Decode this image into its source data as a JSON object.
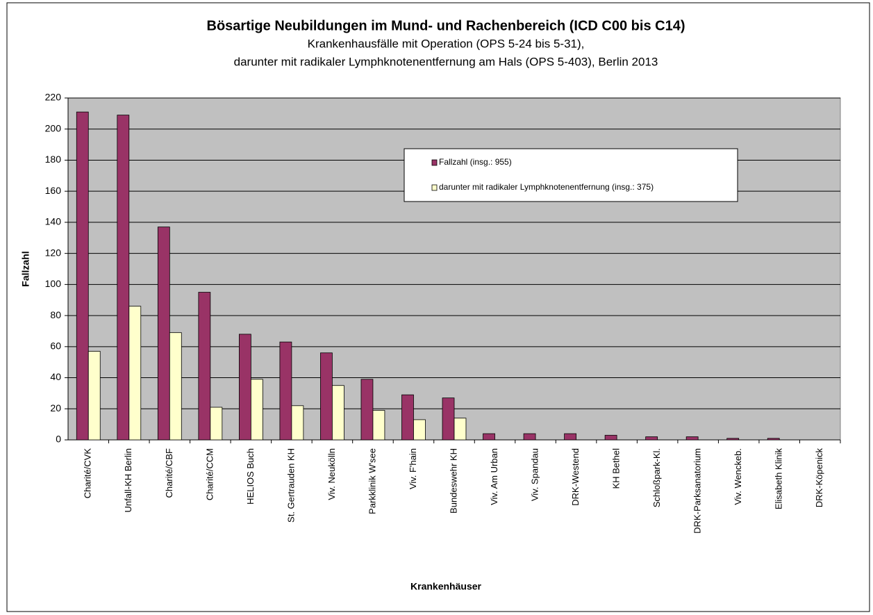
{
  "chart_data": {
    "type": "bar",
    "title": "Bösartige Neubildungen im Mund- und Rachenbereich (ICD C00 bis C14)",
    "subtitle": [
      "Krankenhausfälle mit Operation (OPS 5-24 bis 5-31),",
      "darunter mit radikaler Lymphknotenentfernung am Hals (OPS 5-403), Berlin 2013"
    ],
    "x_label": "Krankenhäuser",
    "y_label": "Fallzahl",
    "categories": [
      "Charité/CVK",
      "Unfall-KH Berlin",
      "Charité/CBF",
      "Charité/CCM",
      "HELIOS Buch",
      "St. Gertrauden KH",
      "Viv. Neukölln",
      "Parkklinik W'see",
      "Viv. F'hain",
      "Bundeswehr KH",
      "Viv. Am Urban",
      "Viv. Spandau",
      "DRK-Westend",
      "KH Bethel",
      "Schloßpark-Kl.",
      "DRK-Parksanatorium",
      "Viv. Wenckeb.",
      "Elisabeth Klinik",
      "DRK-Köpenick"
    ],
    "series": [
      {
        "name": "Fallzahl (insg.: 955)",
        "color": "#993366",
        "values": [
          211,
          209,
          137,
          95,
          68,
          63,
          56,
          39,
          29,
          27,
          4,
          4,
          4,
          3,
          2,
          2,
          1,
          1,
          0
        ]
      },
      {
        "name": "darunter mit radikaler Lymphknotenentfernung (insg.: 375)",
        "color": "#ffffcc",
        "values": [
          57,
          86,
          69,
          21,
          39,
          22,
          35,
          19,
          13,
          14,
          0,
          0,
          0,
          0,
          0,
          0,
          0,
          0,
          0
        ]
      }
    ],
    "ylim": [
      0,
      220
    ],
    "yticks": [
      0,
      20,
      40,
      60,
      80,
      100,
      120,
      140,
      160,
      180,
      200,
      220
    ],
    "grid": true,
    "plot_background": "#c0c0c0"
  }
}
